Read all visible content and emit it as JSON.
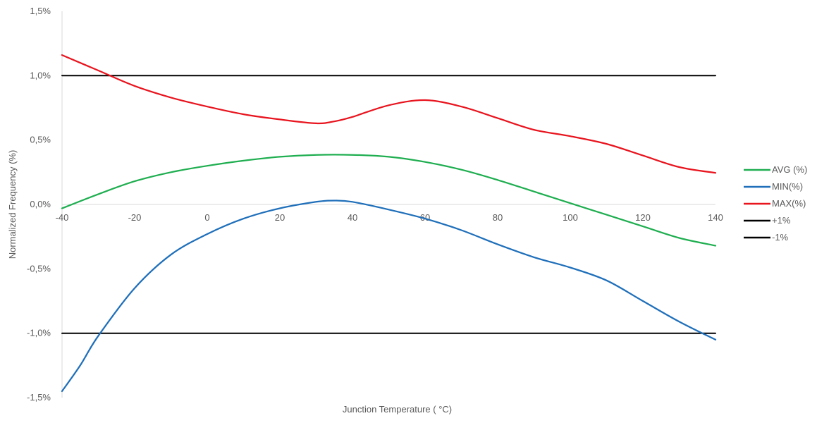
{
  "chart_data": {
    "type": "line",
    "title": "",
    "xlabel": "Junction Temperature (  °C)",
    "ylabel": "Normalized Frequency (%)",
    "xlim": [
      -40,
      140
    ],
    "ylim": [
      -1.5,
      1.5
    ],
    "x_ticks": [
      -40,
      -20,
      0,
      20,
      40,
      60,
      80,
      100,
      120,
      140
    ],
    "x_tick_labels": [
      "-40",
      "-20",
      "0",
      "20",
      "40",
      "60",
      "80",
      "100",
      "120",
      "140"
    ],
    "y_ticks": [
      -1.5,
      -1.0,
      -0.5,
      0.0,
      0.5,
      1.0,
      1.5
    ],
    "y_tick_labels": [
      "-1,5%",
      "-1,0%",
      "-0,5%",
      "0,0%",
      "0,5%",
      "1,0%",
      "1,5%"
    ],
    "grid": false,
    "legend_position": "right",
    "series": [
      {
        "name": "AVG (%)",
        "color": "#1fae50",
        "x": [
          -40,
          -30,
          -20,
          -10,
          0,
          10,
          20,
          30,
          40,
          50,
          60,
          70,
          80,
          90,
          100,
          110,
          120,
          130,
          140
        ],
        "y": [
          -0.03,
          0.08,
          0.18,
          0.25,
          0.3,
          0.34,
          0.37,
          0.385,
          0.385,
          0.37,
          0.33,
          0.27,
          0.19,
          0.1,
          0.01,
          -0.08,
          -0.17,
          -0.26,
          -0.32
        ]
      },
      {
        "name": "MIN(%)",
        "color": "#1f6fba",
        "x": [
          -40,
          -35,
          -30,
          -20,
          -10,
          0,
          10,
          20,
          30,
          35,
          40,
          50,
          60,
          70,
          80,
          90,
          100,
          110,
          120,
          130,
          140
        ],
        "y": [
          -1.45,
          -1.25,
          -1.02,
          -0.65,
          -0.39,
          -0.23,
          -0.11,
          -0.03,
          0.02,
          0.03,
          0.02,
          -0.04,
          -0.11,
          -0.2,
          -0.31,
          -0.41,
          -0.49,
          -0.59,
          -0.75,
          -0.91,
          -1.05
        ]
      },
      {
        "name": "MAX(%)",
        "color": "#e8141e",
        "x": [
          -40,
          -30,
          -20,
          -10,
          0,
          10,
          20,
          30,
          35,
          40,
          50,
          60,
          70,
          80,
          90,
          100,
          110,
          120,
          130,
          140
        ],
        "y": [
          1.16,
          1.04,
          0.92,
          0.83,
          0.76,
          0.7,
          0.66,
          0.63,
          0.645,
          0.68,
          0.77,
          0.81,
          0.76,
          0.67,
          0.58,
          0.53,
          0.47,
          0.38,
          0.29,
          0.245
        ]
      },
      {
        "name": "+1%",
        "color": "#000000",
        "x": [
          -40,
          140
        ],
        "y": [
          1.0,
          1.0
        ]
      },
      {
        "name": "-1%",
        "color": "#000000",
        "x": [
          -40,
          140
        ],
        "y": [
          -1.0,
          -1.0
        ]
      }
    ]
  }
}
